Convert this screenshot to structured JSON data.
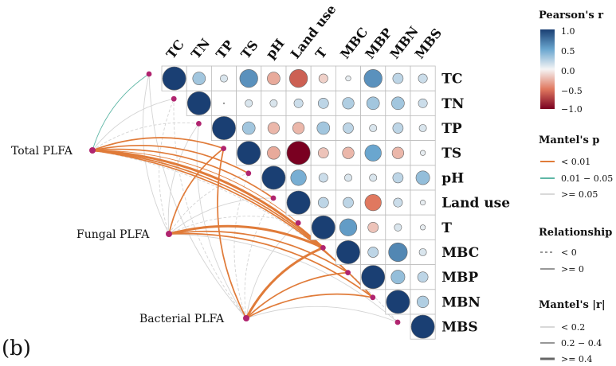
{
  "panel_label": "(b)",
  "chart_data": {
    "type": "heatmap",
    "variables": [
      "TC",
      "TN",
      "TP",
      "TS",
      "pH",
      "Land use",
      "T",
      "MBC",
      "MBP",
      "MBN",
      "MBS"
    ],
    "correlation_matrix_upper": [
      [
        1.0,
        0.3,
        0.1,
        0.6,
        -0.3,
        -0.6,
        -0.15,
        0.05,
        0.6,
        0.2,
        0.15
      ],
      [
        null,
        1.0,
        0.0,
        0.1,
        0.1,
        0.15,
        0.2,
        0.25,
        0.3,
        0.3,
        0.15
      ],
      [
        null,
        null,
        1.0,
        0.3,
        -0.25,
        -0.25,
        0.3,
        0.2,
        0.1,
        0.2,
        0.1
      ],
      [
        null,
        null,
        null,
        1.0,
        -0.3,
        -1.0,
        -0.2,
        -0.25,
        0.5,
        -0.25,
        0.05
      ],
      [
        null,
        null,
        null,
        null,
        1.0,
        0.45,
        0.15,
        0.1,
        0.1,
        0.2,
        0.35
      ],
      [
        null,
        null,
        null,
        null,
        null,
        1.0,
        0.2,
        0.2,
        -0.5,
        0.15,
        0.05
      ],
      [
        null,
        null,
        null,
        null,
        null,
        null,
        1.0,
        0.55,
        -0.2,
        0.1,
        0.05
      ],
      [
        null,
        null,
        null,
        null,
        null,
        null,
        null,
        1.0,
        0.2,
        0.65,
        0.1
      ],
      [
        null,
        null,
        null,
        null,
        null,
        null,
        null,
        null,
        1.0,
        0.35,
        0.2
      ],
      [
        null,
        null,
        null,
        null,
        null,
        null,
        null,
        null,
        null,
        1.0,
        0.25
      ],
      [
        null,
        null,
        null,
        null,
        null,
        null,
        null,
        null,
        null,
        null,
        1.0
      ]
    ],
    "mantel_nodes": [
      "Total PLFA",
      "Fungal PLFA",
      "Bacterial PLFA"
    ],
    "mantel_links": [
      {
        "from": "Total PLFA",
        "to": "TC",
        "p": "0.01 - 0.05",
        "r": "< 0.2",
        "sign": ">= 0"
      },
      {
        "from": "Total PLFA",
        "to": "TN",
        "p": ">= 0.05",
        "r": "< 0.2",
        "sign": ">= 0"
      },
      {
        "from": "Total PLFA",
        "to": "TP",
        "p": ">= 0.05",
        "r": "< 0.2",
        "sign": "< 0"
      },
      {
        "from": "Total PLFA",
        "to": "TS",
        "p": "< 0.01",
        "r": "0.2 - 0.4",
        "sign": ">= 0"
      },
      {
        "from": "Total PLFA",
        "to": "pH",
        "p": "< 0.01",
        "r": "0.2 - 0.4",
        "sign": ">= 0"
      },
      {
        "from": "Total PLFA",
        "to": "Land use",
        "p": "< 0.01",
        "r": "0.2 - 0.4",
        "sign": ">= 0"
      },
      {
        "from": "Total PLFA",
        "to": "T",
        "p": "< 0.01",
        "r": "< 0.2",
        "sign": ">= 0"
      },
      {
        "from": "Total PLFA",
        "to": "MBC",
        "p": "< 0.01",
        "r": ">= 0.4",
        "sign": ">= 0"
      },
      {
        "from": "Total PLFA",
        "to": "MBP",
        "p": "< 0.01",
        "r": "0.2 - 0.4",
        "sign": ">= 0"
      },
      {
        "from": "Total PLFA",
        "to": "MBN",
        "p": "< 0.01",
        "r": "0.2 - 0.4",
        "sign": ">= 0"
      },
      {
        "from": "Total PLFA",
        "to": "MBS",
        "p": ">= 0.05",
        "r": "< 0.2",
        "sign": "< 0"
      },
      {
        "from": "Fungal PLFA",
        "to": "TC",
        "p": ">= 0.05",
        "r": "< 0.2",
        "sign": ">= 0"
      },
      {
        "from": "Fungal PLFA",
        "to": "TN",
        "p": ">= 0.05",
        "r": "< 0.2",
        "sign": "< 0"
      },
      {
        "from": "Fungal PLFA",
        "to": "TP",
        "p": ">= 0.05",
        "r": "< 0.2",
        "sign": ">= 0"
      },
      {
        "from": "Fungal PLFA",
        "to": "TS",
        "p": "< 0.01",
        "r": "0.2 - 0.4",
        "sign": ">= 0"
      },
      {
        "from": "Fungal PLFA",
        "to": "pH",
        "p": ">= 0.05",
        "r": "< 0.2",
        "sign": "< 0"
      },
      {
        "from": "Fungal PLFA",
        "to": "Land use",
        "p": ">= 0.05",
        "r": "< 0.2",
        "sign": ">= 0"
      },
      {
        "from": "Fungal PLFA",
        "to": "T",
        "p": ">= 0.05",
        "r": "< 0.2",
        "sign": "< 0"
      },
      {
        "from": "Fungal PLFA",
        "to": "MBC",
        "p": "< 0.01",
        "r": ">= 0.4",
        "sign": ">= 0"
      },
      {
        "from": "Fungal PLFA",
        "to": "MBP",
        "p": "< 0.01",
        "r": "0.2 - 0.4",
        "sign": ">= 0"
      },
      {
        "from": "Fungal PLFA",
        "to": "MBN",
        "p": "< 0.01",
        "r": "0.2 - 0.4",
        "sign": ">= 0"
      },
      {
        "from": "Fungal PLFA",
        "to": "MBS",
        "p": ">= 0.05",
        "r": "< 0.2",
        "sign": ">= 0"
      },
      {
        "from": "Bacterial PLFA",
        "to": "TC",
        "p": ">= 0.05",
        "r": "< 0.2",
        "sign": ">= 0"
      },
      {
        "from": "Bacterial PLFA",
        "to": "TN",
        "p": ">= 0.05",
        "r": "< 0.2",
        "sign": "< 0"
      },
      {
        "from": "Bacterial PLFA",
        "to": "TP",
        "p": ">= 0.05",
        "r": "< 0.2",
        "sign": ">= 0"
      },
      {
        "from": "Bacterial PLFA",
        "to": "TS",
        "p": "< 0.01",
        "r": "0.2 - 0.4",
        "sign": ">= 0"
      },
      {
        "from": "Bacterial PLFA",
        "to": "pH",
        "p": ">= 0.05",
        "r": "< 0.2",
        "sign": "< 0"
      },
      {
        "from": "Bacterial PLFA",
        "to": "Land use",
        "p": ">= 0.05",
        "r": "< 0.2",
        "sign": "< 0"
      },
      {
        "from": "Bacterial PLFA",
        "to": "T",
        "p": ">= 0.05",
        "r": "< 0.2",
        "sign": ">= 0"
      },
      {
        "from": "Bacterial PLFA",
        "to": "MBC",
        "p": "< 0.01",
        "r": ">= 0.4",
        "sign": ">= 0"
      },
      {
        "from": "Bacterial PLFA",
        "to": "MBP",
        "p": "< 0.01",
        "r": "0.2 - 0.4",
        "sign": ">= 0"
      },
      {
        "from": "Bacterial PLFA",
        "to": "MBN",
        "p": "< 0.01",
        "r": "0.2 - 0.4",
        "sign": ">= 0"
      },
      {
        "from": "Bacterial PLFA",
        "to": "MBS",
        "p": ">= 0.05",
        "r": "< 0.2",
        "sign": ">= 0"
      }
    ],
    "legend": {
      "pearson": {
        "title": "Pearson's r",
        "ticks": [
          "1.0",
          "0.5",
          "0.0",
          "−0.5",
          "−1.0"
        ],
        "range": [
          -1,
          1
        ]
      },
      "mantel_p": {
        "title": "Mantel's p",
        "items": [
          "< 0.01",
          "0.01 − 0.05",
          ">= 0.05"
        ],
        "colors": [
          "#e07b39",
          "#5fb7a6",
          "#d9d9d9"
        ]
      },
      "relationship": {
        "title": "Relationship",
        "items": [
          "< 0",
          ">= 0"
        ]
      },
      "mantel_r": {
        "title": "Mantel's |r|",
        "items": [
          "< 0.2",
          "0.2 − 0.4",
          ">= 0.4"
        ]
      }
    },
    "colors": {
      "positive_max": "#1a3f73",
      "neutral": "#f5f5f5",
      "negative_max": "#7a0021",
      "node": "#b0246f"
    },
    "legend_placement": "right"
  }
}
